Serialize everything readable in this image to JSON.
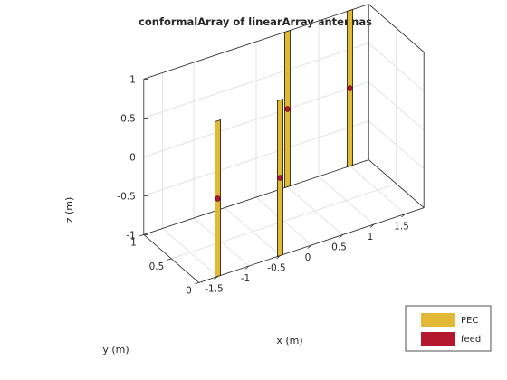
{
  "chart_data": {
    "type": "3d-antenna-geometry",
    "title": "conformalArray of linearArray antennas",
    "xlabel": "x (m)",
    "ylabel": "y (m)",
    "zlabel": "z (m)",
    "grid": true,
    "box": true,
    "legend_position": "bottom-right",
    "xticks": [
      "-1.5",
      "-1",
      "-0.5",
      "0",
      "0.5",
      "1",
      "1.5"
    ],
    "yticks": [
      "0",
      "0.5",
      "1"
    ],
    "zticks": [
      "-1",
      "-0.5",
      "0",
      "0.5",
      "1"
    ],
    "xlim": [
      -1.8,
      1.8
    ],
    "ylim": [
      0,
      1
    ],
    "zlim": [
      -1,
      1
    ],
    "legend": [
      {
        "label": "PEC",
        "color": "#e2b936"
      },
      {
        "label": "feed",
        "color": "#b5182e"
      }
    ],
    "elements": [
      {
        "name": "dipole-1",
        "x": -1.5,
        "y": 0,
        "zmin": -1,
        "zmax": 1,
        "feed_z": 0
      },
      {
        "name": "dipole-2",
        "x": -0.5,
        "y": 0,
        "zmin": -1,
        "zmax": 1,
        "feed_z": 0
      },
      {
        "name": "dipole-3",
        "x": 0.5,
        "y": 1,
        "zmin": -1,
        "zmax": 1,
        "feed_z": 0
      },
      {
        "name": "dipole-4",
        "x": 1.5,
        "y": 1,
        "zmin": -1,
        "zmax": 1,
        "feed_z": 0
      }
    ]
  }
}
